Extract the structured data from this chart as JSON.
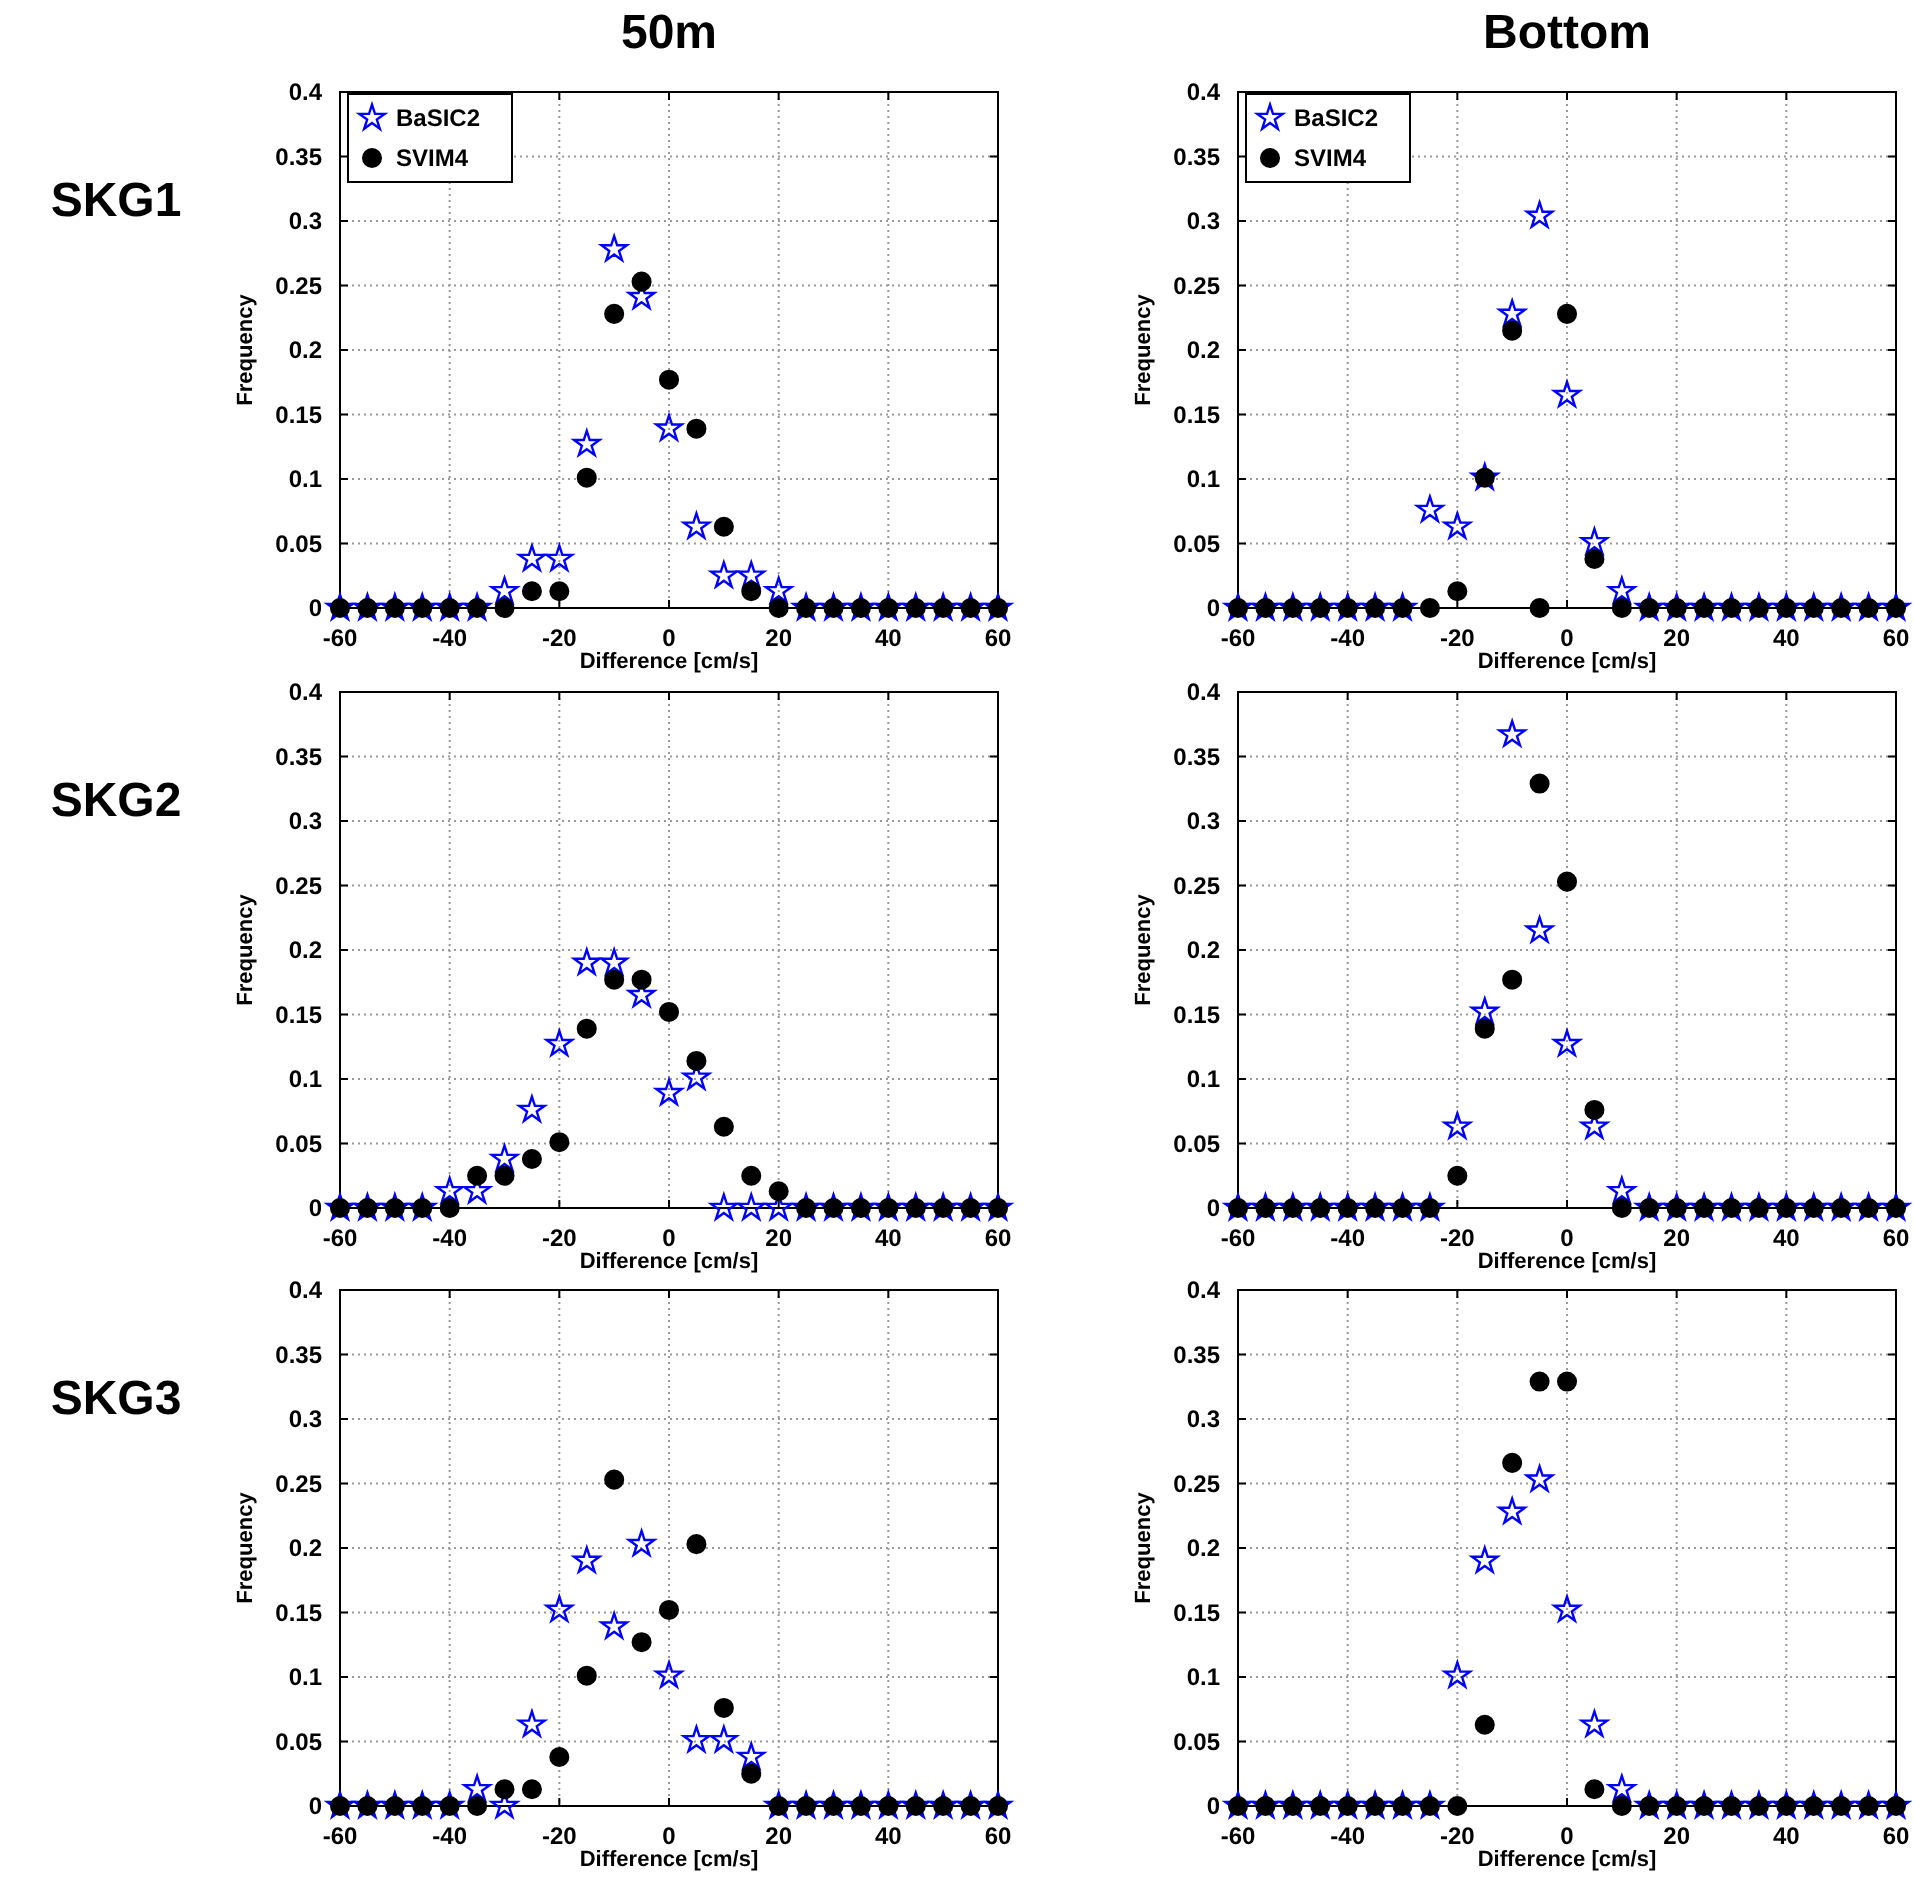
{
  "chart_data": [
    {
      "type": "scatter",
      "title": "50m",
      "annotations": [
        "SKG1"
      ],
      "xlabel": "Difference [cm/s]",
      "ylabel": "Frequency",
      "x": [
        -60,
        -55,
        -50,
        -45,
        -40,
        -35,
        -30,
        -25,
        -20,
        -15,
        -10,
        -5,
        0,
        5,
        10,
        15,
        20,
        25,
        30,
        35,
        40,
        45,
        50,
        55,
        60
      ],
      "xlim": [
        -60,
        60
      ],
      "xticks": [
        -60,
        -40,
        -20,
        0,
        20,
        40,
        60
      ],
      "ylim": [
        0,
        0.4
      ],
      "yticks": [
        0,
        0.05,
        0.1,
        0.15,
        0.2,
        0.25,
        0.3,
        0.35,
        0.4
      ],
      "grid": true,
      "legend": "top left",
      "series": [
        {
          "name": "BaSIC2",
          "color": "#0000ff",
          "marker": "star",
          "values": [
            0,
            0,
            0,
            0,
            0,
            0,
            0.013,
            0.038,
            0.038,
            0.127,
            0.278,
            0.241,
            0.139,
            0.063,
            0.025,
            0.025,
            0.013,
            0,
            0,
            0,
            0,
            0,
            0,
            0,
            0
          ]
        },
        {
          "name": "SVIM4",
          "color": "#000000",
          "marker": "circle",
          "values": [
            0,
            0,
            0,
            0,
            0,
            0,
            0,
            0.013,
            0.013,
            0.101,
            0.228,
            0.253,
            0.177,
            0.139,
            0.063,
            0.013,
            0,
            0,
            0,
            0,
            0,
            0,
            0,
            0,
            0
          ]
        }
      ]
    },
    {
      "type": "scatter",
      "title": "Bottom",
      "xlabel": "Difference [cm/s]",
      "ylabel": "Frequency",
      "x": [
        -60,
        -55,
        -50,
        -45,
        -40,
        -35,
        -30,
        -25,
        -20,
        -15,
        -10,
        -5,
        0,
        5,
        10,
        15,
        20,
        25,
        30,
        35,
        40,
        45,
        50,
        55,
        60
      ],
      "xlim": [
        -60,
        60
      ],
      "xticks": [
        -60,
        -40,
        -20,
        0,
        20,
        40,
        60
      ],
      "ylim": [
        0,
        0.4
      ],
      "yticks": [
        0,
        0.05,
        0.1,
        0.15,
        0.2,
        0.25,
        0.3,
        0.35,
        0.4
      ],
      "grid": true,
      "legend": "top left",
      "series": [
        {
          "name": "BaSIC2",
          "color": "#0000ff",
          "marker": "star",
          "values": [
            0,
            0,
            0,
            0,
            0,
            0,
            0,
            0.076,
            0.063,
            0.101,
            0.228,
            0.304,
            0.165,
            0.051,
            0.013,
            0,
            0,
            0,
            0,
            0,
            0,
            0,
            0,
            0,
            0
          ]
        },
        {
          "name": "SVIM4",
          "color": "#000000",
          "marker": "circle",
          "values": [
            0,
            0,
            0,
            0,
            0,
            0,
            0,
            0,
            0.013,
            0.101,
            0.215,
            0,
            0.228,
            0.038,
            0,
            0,
            0,
            0,
            0,
            0,
            0,
            0,
            0,
            0,
            0
          ]
        }
      ]
    },
    {
      "type": "scatter",
      "annotations": [
        "SKG2"
      ],
      "xlabel": "Difference [cm/s]",
      "ylabel": "Frequency",
      "x": [
        -60,
        -55,
        -50,
        -45,
        -40,
        -35,
        -30,
        -25,
        -20,
        -15,
        -10,
        -5,
        0,
        5,
        10,
        15,
        20,
        25,
        30,
        35,
        40,
        45,
        50,
        55,
        60
      ],
      "xlim": [
        -60,
        60
      ],
      "xticks": [
        -60,
        -40,
        -20,
        0,
        20,
        40,
        60
      ],
      "ylim": [
        0,
        0.4
      ],
      "yticks": [
        0,
        0.05,
        0.1,
        0.15,
        0.2,
        0.25,
        0.3,
        0.35,
        0.4
      ],
      "grid": true,
      "series": [
        {
          "color": "#0000ff",
          "marker": "star",
          "values": [
            0,
            0,
            0,
            0,
            0.013,
            0.013,
            0.038,
            0.076,
            0.127,
            0.19,
            0.19,
            0.165,
            0.089,
            0.101,
            0,
            0,
            0,
            0,
            0,
            0,
            0,
            0,
            0,
            0,
            0
          ]
        },
        {
          "color": "#000000",
          "marker": "circle",
          "values": [
            0,
            0,
            0,
            0,
            0,
            0.025,
            0.025,
            0.038,
            0.051,
            0.139,
            0.177,
            0.177,
            0.152,
            0.114,
            0.063,
            0.025,
            0.013,
            0,
            0,
            0,
            0,
            0,
            0,
            0,
            0
          ]
        }
      ]
    },
    {
      "type": "scatter",
      "xlabel": "Difference [cm/s]",
      "ylabel": "Frequency",
      "x": [
        -60,
        -55,
        -50,
        -45,
        -40,
        -35,
        -30,
        -25,
        -20,
        -15,
        -10,
        -5,
        0,
        5,
        10,
        15,
        20,
        25,
        30,
        35,
        40,
        45,
        50,
        55,
        60
      ],
      "xlim": [
        -60,
        60
      ],
      "xticks": [
        -60,
        -40,
        -20,
        0,
        20,
        40,
        60
      ],
      "ylim": [
        0,
        0.4
      ],
      "yticks": [
        0,
        0.05,
        0.1,
        0.15,
        0.2,
        0.25,
        0.3,
        0.35,
        0.4
      ],
      "grid": true,
      "series": [
        {
          "color": "#0000ff",
          "marker": "star",
          "values": [
            0,
            0,
            0,
            0,
            0,
            0,
            0,
            0,
            0.063,
            0.152,
            0.367,
            0.215,
            0.127,
            0.063,
            0.013,
            0,
            0,
            0,
            0,
            0,
            0,
            0,
            0,
            0,
            0
          ]
        },
        {
          "color": "#000000",
          "marker": "circle",
          "values": [
            0,
            0,
            0,
            0,
            0,
            0,
            0,
            0,
            0.025,
            0.139,
            0.177,
            0.329,
            0.253,
            0.076,
            0,
            0,
            0,
            0,
            0,
            0,
            0,
            0,
            0,
            0,
            0
          ]
        }
      ]
    },
    {
      "type": "scatter",
      "annotations": [
        "SKG3"
      ],
      "xlabel": "Difference [cm/s]",
      "ylabel": "Frequency",
      "x": [
        -60,
        -55,
        -50,
        -45,
        -40,
        -35,
        -30,
        -25,
        -20,
        -15,
        -10,
        -5,
        0,
        5,
        10,
        15,
        20,
        25,
        30,
        35,
        40,
        45,
        50,
        55,
        60
      ],
      "xlim": [
        -60,
        60
      ],
      "xticks": [
        -60,
        -40,
        -20,
        0,
        20,
        40,
        60
      ],
      "ylim": [
        0,
        0.4
      ],
      "yticks": [
        0,
        0.05,
        0.1,
        0.15,
        0.2,
        0.25,
        0.3,
        0.35,
        0.4
      ],
      "grid": true,
      "series": [
        {
          "color": "#0000ff",
          "marker": "star",
          "values": [
            0,
            0,
            0,
            0,
            0,
            0.013,
            0,
            0.063,
            0.152,
            0.19,
            0.139,
            0.203,
            0.101,
            0.051,
            0.051,
            0.038,
            0,
            0,
            0,
            0,
            0,
            0,
            0,
            0,
            0
          ]
        },
        {
          "color": "#000000",
          "marker": "circle",
          "values": [
            0,
            0,
            0,
            0,
            0,
            0,
            0.013,
            0.013,
            0.038,
            0.101,
            0.253,
            0.127,
            0.152,
            0.203,
            0.076,
            0.025,
            0,
            0,
            0,
            0,
            0,
            0,
            0,
            0,
            0
          ]
        }
      ]
    },
    {
      "type": "scatter",
      "xlabel": "Difference [cm/s]",
      "ylabel": "Frequency",
      "x": [
        -60,
        -55,
        -50,
        -45,
        -40,
        -35,
        -30,
        -25,
        -20,
        -15,
        -10,
        -5,
        0,
        5,
        10,
        15,
        20,
        25,
        30,
        35,
        40,
        45,
        50,
        55,
        60
      ],
      "xlim": [
        -60,
        60
      ],
      "xticks": [
        -60,
        -40,
        -20,
        0,
        20,
        40,
        60
      ],
      "ylim": [
        0,
        0.4
      ],
      "yticks": [
        0,
        0.05,
        0.1,
        0.15,
        0.2,
        0.25,
        0.3,
        0.35,
        0.4
      ],
      "grid": true,
      "series": [
        {
          "color": "#0000ff",
          "marker": "star",
          "values": [
            0,
            0,
            0,
            0,
            0,
            0,
            0,
            0,
            0.101,
            0.19,
            0.228,
            0.253,
            0.152,
            0.063,
            0.013,
            0,
            0,
            0,
            0,
            0,
            0,
            0,
            0,
            0,
            0
          ]
        },
        {
          "color": "#000000",
          "marker": "circle",
          "values": [
            0,
            0,
            0,
            0,
            0,
            0,
            0,
            0,
            0,
            0.063,
            0.266,
            0.329,
            0.329,
            0.013,
            0,
            0,
            0,
            0,
            0,
            0,
            0,
            0,
            0,
            0,
            0
          ]
        }
      ]
    }
  ]
}
